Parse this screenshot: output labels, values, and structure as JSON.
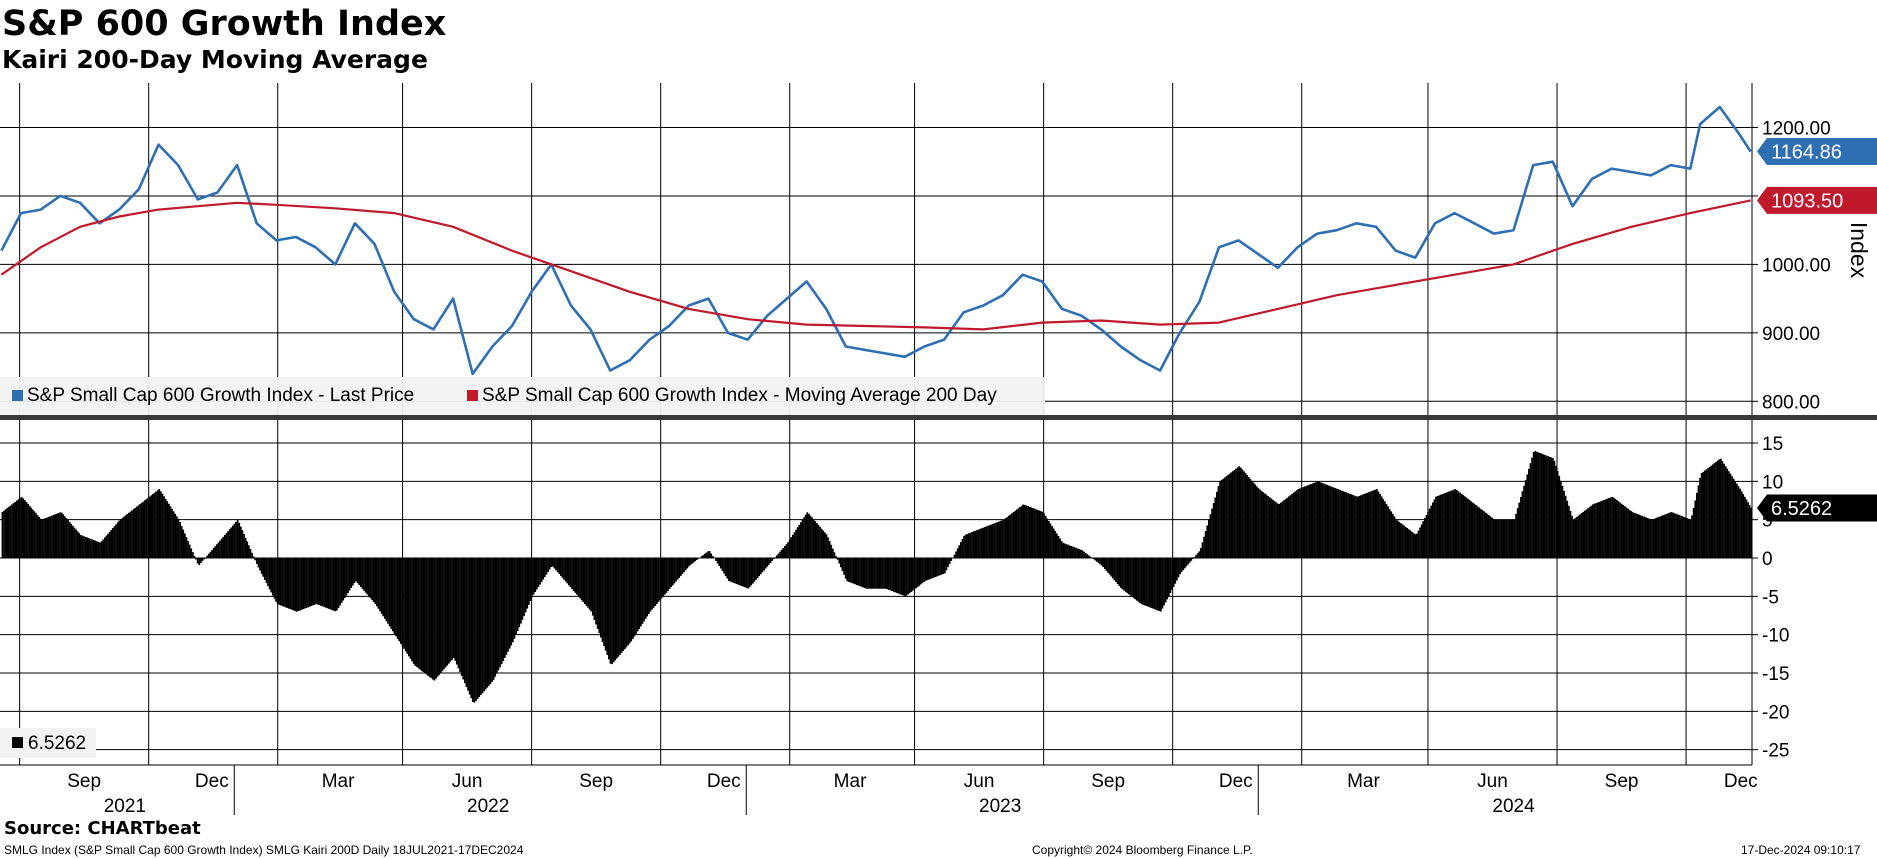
{
  "title": "S&P 600 Growth Index",
  "subtitle": "Kairi 200-Day Moving Average",
  "source": "Source: CHARTbeat",
  "footer": {
    "left": "SMLG Index (S&P Small Cap 600 Growth Index) SMLG Kairi 200D  Daily 18JUL2021-17DEC2024",
    "center": "Copyright© 2024 Bloomberg Finance L.P.",
    "right": "17-Dec-2024 09:10:17"
  },
  "chart_data": [
    {
      "type": "line",
      "panel": "upper",
      "ylabel": "Index",
      "ylim": [
        780,
        1265
      ],
      "yticks": [
        800,
        900,
        1000,
        1100,
        1200
      ],
      "ytick_labels": [
        "800.00",
        "900.00",
        "1000.00",
        "",
        "1200.00"
      ],
      "legend": "bottom-left",
      "grid": true,
      "series": [
        {
          "name": "S&P Small Cap 600 Growth Index - Last Price",
          "color": "#2e6fb3",
          "last_label": "1164.86",
          "points": [
            [
              "2021-07-19",
              1020
            ],
            [
              "2021-08-02",
              1075
            ],
            [
              "2021-08-16",
              1080
            ],
            [
              "2021-08-30",
              1100
            ],
            [
              "2021-09-13",
              1090
            ],
            [
              "2021-09-27",
              1060
            ],
            [
              "2021-10-11",
              1080
            ],
            [
              "2021-10-25",
              1110
            ],
            [
              "2021-11-08",
              1175
            ],
            [
              "2021-11-22",
              1145
            ],
            [
              "2021-12-06",
              1095
            ],
            [
              "2021-12-20",
              1105
            ],
            [
              "2022-01-03",
              1145
            ],
            [
              "2022-01-17",
              1060
            ],
            [
              "2022-01-31",
              1035
            ],
            [
              "2022-02-14",
              1040
            ],
            [
              "2022-02-28",
              1025
            ],
            [
              "2022-03-14",
              1000
            ],
            [
              "2022-03-28",
              1060
            ],
            [
              "2022-04-11",
              1030
            ],
            [
              "2022-04-25",
              960
            ],
            [
              "2022-05-09",
              920
            ],
            [
              "2022-05-23",
              905
            ],
            [
              "2022-06-06",
              950
            ],
            [
              "2022-06-20",
              840
            ],
            [
              "2022-07-04",
              880
            ],
            [
              "2022-07-18",
              910
            ],
            [
              "2022-08-01",
              960
            ],
            [
              "2022-08-15",
              1000
            ],
            [
              "2022-08-29",
              940
            ],
            [
              "2022-09-12",
              905
            ],
            [
              "2022-09-26",
              845
            ],
            [
              "2022-10-10",
              860
            ],
            [
              "2022-10-24",
              890
            ],
            [
              "2022-11-07",
              910
            ],
            [
              "2022-11-21",
              940
            ],
            [
              "2022-12-05",
              950
            ],
            [
              "2022-12-19",
              900
            ],
            [
              "2023-01-02",
              890
            ],
            [
              "2023-01-16",
              925
            ],
            [
              "2023-01-30",
              950
            ],
            [
              "2023-02-13",
              975
            ],
            [
              "2023-02-27",
              935
            ],
            [
              "2023-03-13",
              880
            ],
            [
              "2023-03-27",
              875
            ],
            [
              "2023-04-10",
              870
            ],
            [
              "2023-04-24",
              865
            ],
            [
              "2023-05-08",
              880
            ],
            [
              "2023-05-22",
              890
            ],
            [
              "2023-06-05",
              930
            ],
            [
              "2023-06-19",
              940
            ],
            [
              "2023-07-03",
              955
            ],
            [
              "2023-07-17",
              985
            ],
            [
              "2023-07-31",
              975
            ],
            [
              "2023-08-14",
              935
            ],
            [
              "2023-08-28",
              925
            ],
            [
              "2023-09-11",
              905
            ],
            [
              "2023-09-25",
              880
            ],
            [
              "2023-10-09",
              860
            ],
            [
              "2023-10-23",
              845
            ],
            [
              "2023-11-06",
              900
            ],
            [
              "2023-11-20",
              945
            ],
            [
              "2023-12-04",
              1025
            ],
            [
              "2023-12-18",
              1035
            ],
            [
              "2024-01-01",
              1015
            ],
            [
              "2024-01-15",
              995
            ],
            [
              "2024-01-29",
              1025
            ],
            [
              "2024-02-12",
              1045
            ],
            [
              "2024-02-26",
              1050
            ],
            [
              "2024-03-11",
              1060
            ],
            [
              "2024-03-25",
              1055
            ],
            [
              "2024-04-08",
              1020
            ],
            [
              "2024-04-22",
              1010
            ],
            [
              "2024-05-06",
              1060
            ],
            [
              "2024-05-20",
              1075
            ],
            [
              "2024-06-03",
              1060
            ],
            [
              "2024-06-17",
              1045
            ],
            [
              "2024-07-01",
              1050
            ],
            [
              "2024-07-15",
              1145
            ],
            [
              "2024-07-29",
              1150
            ],
            [
              "2024-08-12",
              1085
            ],
            [
              "2024-08-26",
              1125
            ],
            [
              "2024-09-09",
              1140
            ],
            [
              "2024-09-23",
              1135
            ],
            [
              "2024-10-07",
              1130
            ],
            [
              "2024-10-21",
              1145
            ],
            [
              "2024-11-04",
              1140
            ],
            [
              "2024-11-11",
              1205
            ],
            [
              "2024-11-25",
              1230
            ],
            [
              "2024-12-09",
              1190
            ],
            [
              "2024-12-17",
              1164.86
            ]
          ]
        },
        {
          "name": "S&P Small Cap 600 Growth Index - Moving Average 200 Day",
          "color": "#c0192c",
          "last_label": "1093.50",
          "points": [
            [
              "2021-07-19",
              985
            ],
            [
              "2021-08-16",
              1025
            ],
            [
              "2021-09-13",
              1055
            ],
            [
              "2021-10-11",
              1070
            ],
            [
              "2021-11-08",
              1080
            ],
            [
              "2021-12-06",
              1085
            ],
            [
              "2022-01-03",
              1090
            ],
            [
              "2022-01-31",
              1087
            ],
            [
              "2022-03-14",
              1082
            ],
            [
              "2022-04-25",
              1075
            ],
            [
              "2022-06-06",
              1055
            ],
            [
              "2022-07-18",
              1020
            ],
            [
              "2022-08-29",
              990
            ],
            [
              "2022-10-10",
              960
            ],
            [
              "2022-11-21",
              935
            ],
            [
              "2023-01-02",
              920
            ],
            [
              "2023-02-13",
              912
            ],
            [
              "2023-03-27",
              910
            ],
            [
              "2023-05-08",
              908
            ],
            [
              "2023-06-19",
              905
            ],
            [
              "2023-07-31",
              915
            ],
            [
              "2023-09-11",
              918
            ],
            [
              "2023-10-23",
              912
            ],
            [
              "2023-12-04",
              915
            ],
            [
              "2024-01-15",
              935
            ],
            [
              "2024-02-26",
              955
            ],
            [
              "2024-04-08",
              970
            ],
            [
              "2024-05-20",
              985
            ],
            [
              "2024-07-01",
              1000
            ],
            [
              "2024-08-12",
              1030
            ],
            [
              "2024-09-23",
              1055
            ],
            [
              "2024-11-04",
              1075
            ],
            [
              "2024-12-17",
              1093.5
            ]
          ]
        }
      ]
    },
    {
      "type": "bar",
      "panel": "lower",
      "ylim": [
        -27,
        18
      ],
      "yticks": [
        15,
        10,
        5,
        0,
        -5,
        -10,
        -15,
        -20,
        -25
      ],
      "ytick_labels": [
        "15",
        "10",
        "5",
        "0",
        "-5",
        "-10",
        "-15",
        "-20",
        "-25"
      ],
      "legend": "bottom-left",
      "series": [
        {
          "name": "6.5262",
          "color": "#000000",
          "last_label": "6.5262",
          "points": [
            [
              "2021-07-19",
              6
            ],
            [
              "2021-08-02",
              8
            ],
            [
              "2021-08-16",
              5
            ],
            [
              "2021-08-30",
              6
            ],
            [
              "2021-09-13",
              3
            ],
            [
              "2021-09-27",
              2
            ],
            [
              "2021-10-11",
              5
            ],
            [
              "2021-10-25",
              7
            ],
            [
              "2021-11-08",
              9
            ],
            [
              "2021-11-22",
              5
            ],
            [
              "2021-12-06",
              -1
            ],
            [
              "2021-12-20",
              2
            ],
            [
              "2022-01-03",
              5
            ],
            [
              "2022-01-17",
              -1
            ],
            [
              "2022-01-31",
              -6
            ],
            [
              "2022-02-14",
              -7
            ],
            [
              "2022-02-28",
              -6
            ],
            [
              "2022-03-14",
              -7
            ],
            [
              "2022-03-28",
              -3
            ],
            [
              "2022-04-11",
              -6
            ],
            [
              "2022-04-25",
              -10
            ],
            [
              "2022-05-09",
              -14
            ],
            [
              "2022-05-23",
              -16
            ],
            [
              "2022-06-06",
              -13
            ],
            [
              "2022-06-20",
              -19
            ],
            [
              "2022-07-04",
              -16
            ],
            [
              "2022-07-18",
              -11
            ],
            [
              "2022-08-01",
              -5
            ],
            [
              "2022-08-15",
              -1
            ],
            [
              "2022-08-29",
              -4
            ],
            [
              "2022-09-12",
              -7
            ],
            [
              "2022-09-26",
              -14
            ],
            [
              "2022-10-10",
              -11
            ],
            [
              "2022-10-24",
              -7
            ],
            [
              "2022-11-07",
              -4
            ],
            [
              "2022-11-21",
              -1
            ],
            [
              "2022-12-05",
              1
            ],
            [
              "2022-12-19",
              -3
            ],
            [
              "2023-01-02",
              -4
            ],
            [
              "2023-01-16",
              -1
            ],
            [
              "2023-01-30",
              2
            ],
            [
              "2023-02-13",
              6
            ],
            [
              "2023-02-27",
              3
            ],
            [
              "2023-03-13",
              -3
            ],
            [
              "2023-03-27",
              -4
            ],
            [
              "2023-04-10",
              -4
            ],
            [
              "2023-04-24",
              -5
            ],
            [
              "2023-05-08",
              -3
            ],
            [
              "2023-05-22",
              -2
            ],
            [
              "2023-06-05",
              3
            ],
            [
              "2023-06-19",
              4
            ],
            [
              "2023-07-03",
              5
            ],
            [
              "2023-07-17",
              7
            ],
            [
              "2023-07-31",
              6
            ],
            [
              "2023-08-14",
              2
            ],
            [
              "2023-08-28",
              1
            ],
            [
              "2023-09-11",
              -1
            ],
            [
              "2023-09-25",
              -4
            ],
            [
              "2023-10-09",
              -6
            ],
            [
              "2023-10-23",
              -7
            ],
            [
              "2023-11-06",
              -2
            ],
            [
              "2023-11-20",
              1
            ],
            [
              "2023-12-04",
              10
            ],
            [
              "2023-12-18",
              12
            ],
            [
              "2024-01-01",
              9
            ],
            [
              "2024-01-15",
              7
            ],
            [
              "2024-01-29",
              9
            ],
            [
              "2024-02-12",
              10
            ],
            [
              "2024-02-26",
              9
            ],
            [
              "2024-03-11",
              8
            ],
            [
              "2024-03-25",
              9
            ],
            [
              "2024-04-08",
              5
            ],
            [
              "2024-04-22",
              3
            ],
            [
              "2024-05-06",
              8
            ],
            [
              "2024-05-20",
              9
            ],
            [
              "2024-06-03",
              7
            ],
            [
              "2024-06-17",
              5
            ],
            [
              "2024-07-01",
              5
            ],
            [
              "2024-07-15",
              14
            ],
            [
              "2024-07-29",
              13
            ],
            [
              "2024-08-12",
              5
            ],
            [
              "2024-08-26",
              7
            ],
            [
              "2024-09-09",
              8
            ],
            [
              "2024-09-23",
              6
            ],
            [
              "2024-10-07",
              5
            ],
            [
              "2024-10-21",
              6
            ],
            [
              "2024-11-04",
              5
            ],
            [
              "2024-11-11",
              11
            ],
            [
              "2024-11-25",
              13
            ],
            [
              "2024-12-09",
              9
            ],
            [
              "2024-12-17",
              6.5262
            ]
          ]
        }
      ]
    }
  ],
  "x_axis": {
    "range": [
      "2021-07-18",
      "2024-12-18"
    ],
    "gridlines": [
      "2021-08-01",
      "2021-11-01",
      "2022-02-01",
      "2022-05-01",
      "2022-08-01",
      "2022-11-01",
      "2023-02-01",
      "2023-05-01",
      "2023-08-01",
      "2023-11-01",
      "2024-02-01",
      "2024-05-01",
      "2024-08-01",
      "2024-11-01"
    ],
    "year_separators": [
      "2022-01-01",
      "2023-01-01",
      "2024-01-01"
    ],
    "month_labels": [
      {
        "date": "2021-09-16",
        "text": "Sep"
      },
      {
        "date": "2021-12-16",
        "text": "Dec"
      },
      {
        "date": "2022-03-16",
        "text": "Mar"
      },
      {
        "date": "2022-06-16",
        "text": "Jun"
      },
      {
        "date": "2022-09-16",
        "text": "Sep"
      },
      {
        "date": "2022-12-16",
        "text": "Dec"
      },
      {
        "date": "2023-03-16",
        "text": "Mar"
      },
      {
        "date": "2023-06-16",
        "text": "Jun"
      },
      {
        "date": "2023-09-16",
        "text": "Sep"
      },
      {
        "date": "2023-12-16",
        "text": "Dec"
      },
      {
        "date": "2024-03-16",
        "text": "Mar"
      },
      {
        "date": "2024-06-16",
        "text": "Jun"
      },
      {
        "date": "2024-09-16",
        "text": "Sep"
      },
      {
        "date": "2024-12-10",
        "text": "Dec"
      }
    ],
    "year_labels": [
      {
        "date": "2021-10-15",
        "text": "2021"
      },
      {
        "date": "2022-07-01",
        "text": "2022"
      },
      {
        "date": "2023-07-01",
        "text": "2023"
      },
      {
        "date": "2024-07-01",
        "text": "2024"
      }
    ]
  }
}
